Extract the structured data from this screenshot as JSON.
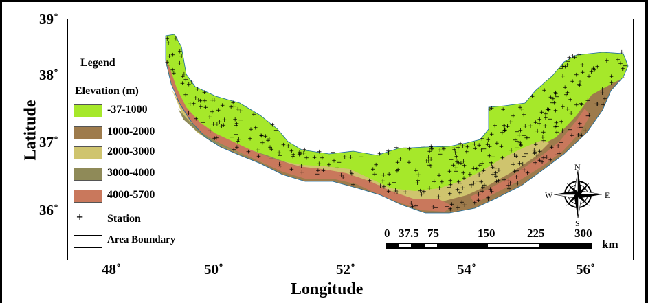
{
  "axes": {
    "x_title": "Longitude",
    "y_title": "Latitude",
    "lon_ticks": [
      "48˚",
      "50˚",
      "52˚",
      "54˚",
      "56˚"
    ],
    "lat_ticks": [
      "39˚",
      "38˚",
      "37˚",
      "36˚"
    ]
  },
  "legend": {
    "title": "Legend",
    "elevation_title": "Elevation (m)",
    "classes": [
      {
        "label": "-37-1000",
        "color": "#a6e82a"
      },
      {
        "label": "1000-2000",
        "color": "#9e7b4c"
      },
      {
        "label": "2000-3000",
        "color": "#cfc46e"
      },
      {
        "label": "3000-4000",
        "color": "#8f8a58"
      },
      {
        "label": "4000-5700",
        "color": "#c9785c"
      }
    ],
    "station_symbol": "+",
    "station_label": "Station",
    "boundary_label": "Area Boundary"
  },
  "scale_bar": {
    "labels": [
      "0",
      "37.5",
      "75",
      "150",
      "225",
      "300"
    ],
    "unit": "km"
  },
  "compass": {
    "n": "N",
    "s": "S",
    "e": "E",
    "w": "W"
  },
  "colors": {
    "lowland": "#a6e82a",
    "mid1": "#9e7b4c",
    "mid2": "#cfc46e",
    "mid3": "#8f8a58",
    "high": "#c9785c"
  }
}
